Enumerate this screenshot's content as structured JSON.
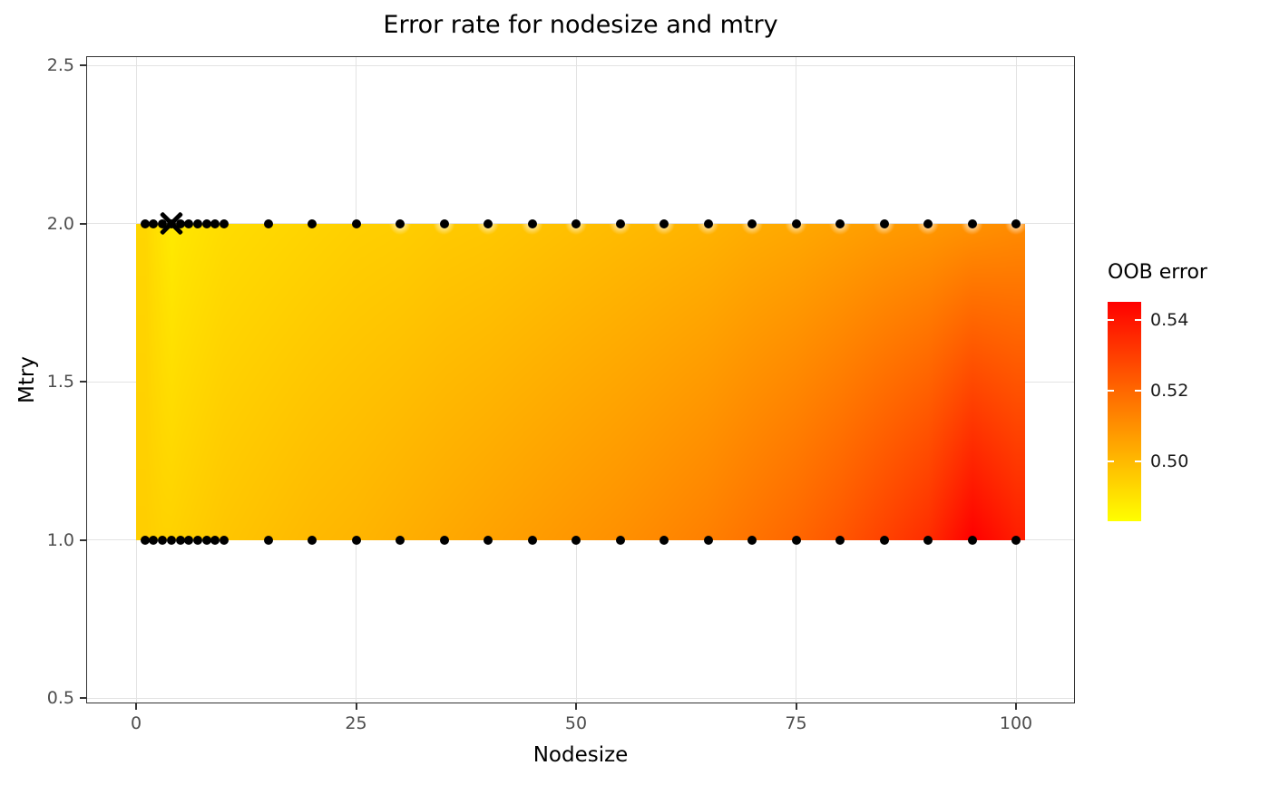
{
  "chart_data": {
    "type": "heatmap",
    "title": "Error rate for nodesize and mtry",
    "xlabel": "Nodesize",
    "ylabel": "Mtry",
    "xlim": [
      -5.6,
      106.7
    ],
    "ylim": [
      0.5,
      2.5
    ],
    "grid": true,
    "x_tick_labels": [
      "0",
      "25",
      "50",
      "75",
      "100"
    ],
    "x_tick_values": [
      0,
      25,
      50,
      75,
      100
    ],
    "y_tick_labels": [
      "0.5",
      "1.0",
      "1.5",
      "2.0",
      "2.5"
    ],
    "y_tick_values": [
      0.5,
      1.0,
      1.5,
      2.0,
      2.5
    ],
    "heat_rect": {
      "x_min": 0,
      "x_max": 101,
      "y_min": 1.0,
      "y_max": 2.0
    },
    "color_scale": {
      "low_color": "#FFFF00",
      "high_color": "#FF0000",
      "min": 0.483,
      "max": 0.545
    },
    "legend": {
      "title": "OOB error",
      "position": "right",
      "tick_labels": [
        "0.54",
        "0.52",
        "0.50"
      ],
      "tick_values": [
        0.54,
        0.52,
        0.5
      ]
    },
    "nodesize_values": [
      1,
      2,
      3,
      4,
      5,
      6,
      7,
      8,
      9,
      10,
      15,
      20,
      25,
      30,
      35,
      40,
      45,
      50,
      55,
      60,
      65,
      70,
      75,
      80,
      85,
      90,
      95,
      100
    ],
    "mtry_values": [
      1,
      2
    ],
    "series": [
      {
        "name": "mtry=1",
        "mtry": 1,
        "oob_error": [
          0.495,
          0.4945,
          0.494,
          0.494,
          0.4945,
          0.495,
          0.4955,
          0.496,
          0.4965,
          0.497,
          0.4985,
          0.5,
          0.501,
          0.5025,
          0.504,
          0.5055,
          0.507,
          0.5085,
          0.51,
          0.512,
          0.514,
          0.517,
          0.52,
          0.524,
          0.529,
          0.534,
          0.545,
          0.538
        ]
      },
      {
        "name": "mtry=2",
        "mtry": 2,
        "oob_error": [
          0.493,
          0.491,
          0.4895,
          0.488,
          0.489,
          0.4895,
          0.49,
          0.4905,
          0.491,
          0.4915,
          0.4925,
          0.4935,
          0.4945,
          0.495,
          0.496,
          0.4965,
          0.4975,
          0.4985,
          0.4995,
          0.5005,
          0.5015,
          0.503,
          0.504,
          0.5055,
          0.507,
          0.508,
          0.5095,
          0.511
        ]
      }
    ],
    "best_point": {
      "nodesize": 4,
      "mtry": 2,
      "marker": "X"
    }
  }
}
